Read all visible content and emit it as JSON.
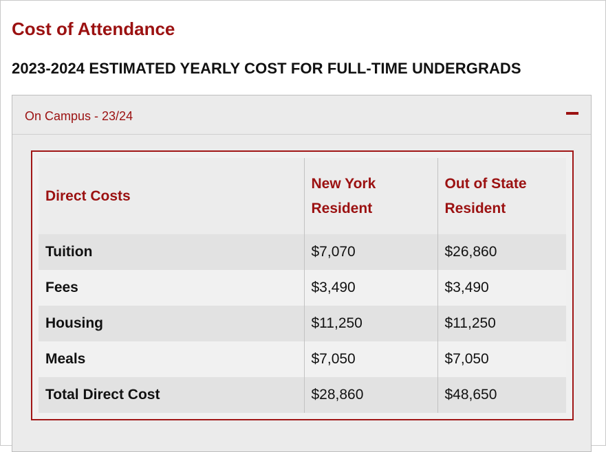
{
  "page": {
    "title": "Cost of Attendance",
    "subtitle": "2023-2024 ESTIMATED YEARLY COST FOR FULL-TIME UNDERGRADS"
  },
  "accordion": {
    "label": "On Campus - 23/24",
    "toggle_icon": "minus-icon",
    "expanded": true
  },
  "table": {
    "headers": [
      "Direct Costs",
      "New York Resident",
      "Out of State Resident"
    ],
    "rows": [
      {
        "label": "Tuition",
        "ny": "$7,070",
        "oos": "$26,860"
      },
      {
        "label": "Fees",
        "ny": "$3,490",
        "oos": "$3,490"
      },
      {
        "label": "Housing",
        "ny": "$11,250",
        "oos": "$11,250"
      },
      {
        "label": "Meals",
        "ny": "$7,050",
        "oos": "$7,050"
      },
      {
        "label": "Total Direct Cost",
        "ny": "$28,860",
        "oos": "$48,650"
      }
    ]
  },
  "colors": {
    "accent": "#9b1111",
    "text": "#111111",
    "panel_bg": "#ebebeb"
  }
}
